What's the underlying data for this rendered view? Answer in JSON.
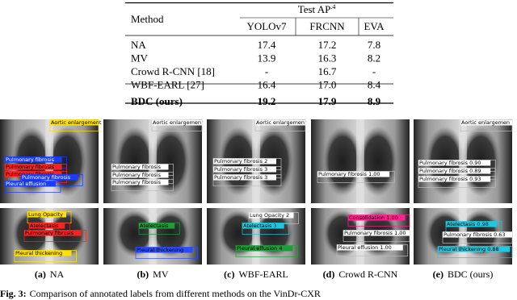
{
  "table": {
    "group_header": "Test AP",
    "group_header_sup": ".4",
    "columns": [
      "Method",
      "YOLOv7",
      "FRCNN",
      "EVA"
    ],
    "rows": [
      [
        "NA",
        "17.4",
        "17.2",
        "7.8"
      ],
      [
        "MV",
        "13.9",
        "16.3",
        "8.2"
      ],
      [
        "Crowd R-CNN [18]",
        "-",
        "16.7",
        "-"
      ],
      [
        "WBF-EARL [27]",
        "16.4",
        "17.0",
        "8.4"
      ],
      [
        "BDC (ours)",
        "19.2",
        "17.9",
        "8.9"
      ]
    ]
  },
  "panels": [
    {
      "letter": "(a)",
      "name": "NA",
      "top": [
        "Aortic enlargement",
        "Pulmonary fibrosis",
        "Pulmonary fibrosis",
        "Pulmonary fibrosis",
        "Pulmonary fibrosis",
        "Pleural effusion"
      ],
      "bottom": [
        "Lung Opacity",
        "Atelectasis",
        "Pulmonary fibrosis",
        "Pleural thickening"
      ]
    },
    {
      "letter": "(b)",
      "name": "MV",
      "top": [
        "Aortic enlargemen",
        "Pulmonary fibrosis",
        "Pulmonary fibrosis",
        "Pulmonary fibrosis"
      ],
      "bottom": [
        "Atelectasis",
        "Pleural thickening"
      ]
    },
    {
      "letter": "(c)",
      "name": "WBF-EARL",
      "top": [
        "Aortic enlargemen",
        "Pulmonary fibrosis 2",
        "Pulmonary fibrosis 3",
        "Pulmonary fibrosis 3"
      ],
      "bottom": [
        "Lung Opacity 2",
        "Atelectasis 3",
        "Pleural effusion 4"
      ]
    },
    {
      "letter": "(d)",
      "name": "Crowd R-CNN",
      "top": [
        "Pulmonary fibrosis 1.00"
      ],
      "bottom": [
        "Consolidation 1.00",
        "Pulmonary fibrosis 1.00",
        "Pleural effusion 1.00"
      ]
    },
    {
      "letter": "(e)",
      "name": "BDC (ours)",
      "top": [
        "Aortic enlargemen",
        "Pulmonary fibrosis 0.90",
        "Pulmonary fibrosis 0.89",
        "Pulmonary fibrosis 0.93"
      ],
      "bottom": [
        "Atelectasis 0.98",
        "Pulmonary fibrosis 0.63",
        "Pleural thickening 0.88"
      ]
    }
  ],
  "figure_caption": {
    "label": "Fig. 3:",
    "text": "Comparison of annotated labels from different methods on the VinDr-CXR"
  }
}
